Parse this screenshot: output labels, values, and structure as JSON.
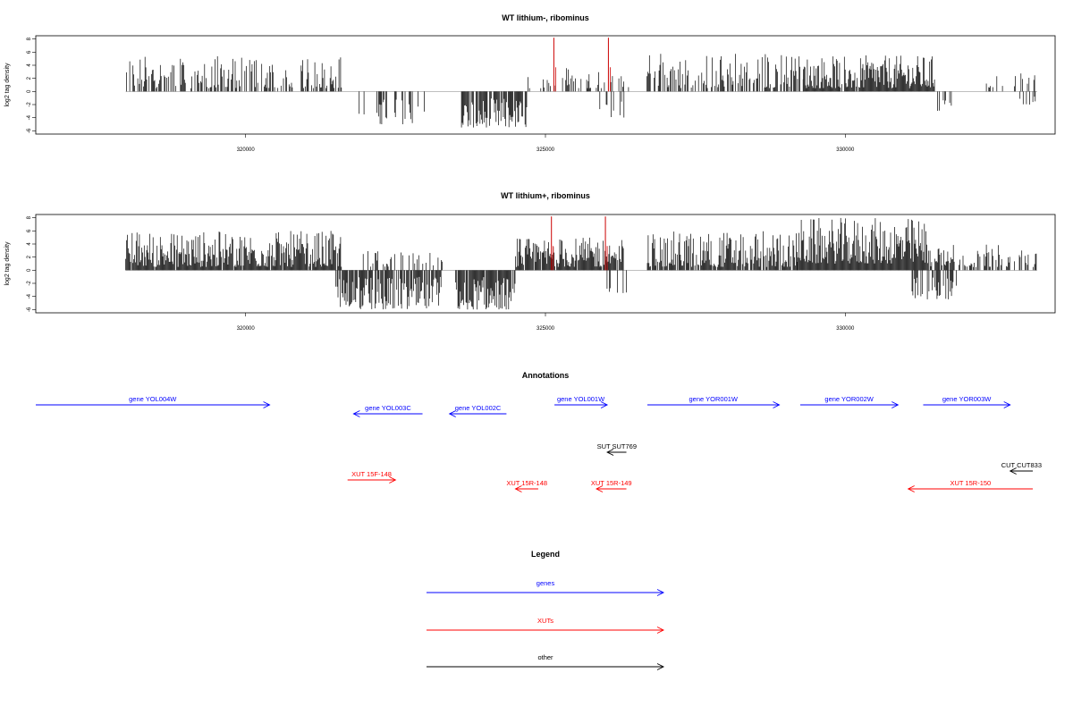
{
  "chart_data": [
    {
      "type": "bar",
      "title": "WT lithium-, ribominus",
      "ylabel": "log2 tag density",
      "xlim": [
        316500,
        333500
      ],
      "ylim": [
        -6.5,
        8.5
      ],
      "x_ticks": [
        320000,
        325000,
        330000
      ],
      "y_ticks": [
        8,
        6,
        4,
        2,
        0,
        -2,
        -4,
        -6
      ],
      "highlight_x": [
        325140,
        326050
      ],
      "highlight_values": [
        8.2,
        8.2
      ],
      "highlight_color": "#cc0000",
      "segments": [
        {
          "start": 318000,
          "end": 321600,
          "density": 0.55,
          "min": 0.5,
          "max": 5.5,
          "direction": "up"
        },
        {
          "start": 321800,
          "end": 323000,
          "density": 0.3,
          "min": -5.0,
          "max": -1.0,
          "direction": "down"
        },
        {
          "start": 323600,
          "end": 324700,
          "density": 0.85,
          "min": -5.5,
          "max": -1.0,
          "direction": "down"
        },
        {
          "start": 324600,
          "end": 326400,
          "density": 0.25,
          "min": 0.5,
          "max": 4.0,
          "direction": "up"
        },
        {
          "start": 325800,
          "end": 326400,
          "density": 0.15,
          "min": -4.0,
          "max": -1.0,
          "direction": "down"
        },
        {
          "start": 326600,
          "end": 329300,
          "density": 0.55,
          "min": 0.5,
          "max": 6.0,
          "direction": "up"
        },
        {
          "start": 329300,
          "end": 331500,
          "density": 0.95,
          "min": 0.5,
          "max": 5.5,
          "direction": "up"
        },
        {
          "start": 331500,
          "end": 331800,
          "density": 0.2,
          "min": -3.0,
          "max": -1.0,
          "direction": "down"
        },
        {
          "start": 332300,
          "end": 333200,
          "density": 0.15,
          "min": 0.5,
          "max": 3.0,
          "direction": "up"
        },
        {
          "start": 332900,
          "end": 333200,
          "density": 0.2,
          "min": -2.0,
          "max": -0.5,
          "direction": "down"
        }
      ]
    },
    {
      "type": "bar",
      "title": "WT lithium+, ribominus",
      "ylabel": "log2 tag density",
      "xlim": [
        316500,
        333500
      ],
      "ylim": [
        -6.5,
        8.5
      ],
      "x_ticks": [
        320000,
        325000,
        330000
      ],
      "y_ticks": [
        8,
        6,
        4,
        2,
        0,
        -2,
        -4,
        -6
      ],
      "highlight_x": [
        325100,
        326000
      ],
      "highlight_values": [
        8.2,
        8.2
      ],
      "highlight_color": "#cc0000",
      "segments": [
        {
          "start": 318000,
          "end": 321600,
          "density": 0.95,
          "min": 0.5,
          "max": 6.0,
          "direction": "up"
        },
        {
          "start": 321500,
          "end": 323300,
          "density": 0.8,
          "min": -6.0,
          "max": -1.0,
          "direction": "down"
        },
        {
          "start": 321800,
          "end": 323300,
          "density": 0.3,
          "min": 0.5,
          "max": 3.0,
          "direction": "up"
        },
        {
          "start": 323500,
          "end": 324500,
          "density": 0.95,
          "min": -6.0,
          "max": -1.0,
          "direction": "down"
        },
        {
          "start": 324500,
          "end": 326300,
          "density": 0.95,
          "min": 0.5,
          "max": 5.0,
          "direction": "up"
        },
        {
          "start": 326000,
          "end": 326400,
          "density": 0.25,
          "min": -3.5,
          "max": -1.0,
          "direction": "down"
        },
        {
          "start": 326700,
          "end": 329200,
          "density": 0.85,
          "min": 0.5,
          "max": 6.0,
          "direction": "up"
        },
        {
          "start": 329200,
          "end": 331400,
          "density": 1.0,
          "min": 1.0,
          "max": 8.0,
          "direction": "up"
        },
        {
          "start": 331100,
          "end": 331900,
          "density": 0.4,
          "min": -4.5,
          "max": -1.0,
          "direction": "down"
        },
        {
          "start": 331400,
          "end": 333200,
          "density": 0.55,
          "min": 0.5,
          "max": 4.0,
          "direction": "up"
        }
      ]
    }
  ],
  "annotations": {
    "title": "Annotations",
    "features": [
      {
        "label": "gene YOL004W",
        "start": 316500,
        "end": 320400,
        "strand": "+",
        "kind": "gene",
        "row": 1
      },
      {
        "label": "gene YOL003C",
        "start": 321800,
        "end": 322950,
        "strand": "-",
        "kind": "gene",
        "row": 2
      },
      {
        "label": "gene YOL002C",
        "start": 323400,
        "end": 324350,
        "strand": "-",
        "kind": "gene",
        "row": 2
      },
      {
        "label": "gene YOL001W",
        "start": 325150,
        "end": 326030,
        "strand": "+",
        "kind": "gene",
        "row": 1
      },
      {
        "label": "gene YOR001W",
        "start": 326700,
        "end": 328900,
        "strand": "+",
        "kind": "gene",
        "row": 1
      },
      {
        "label": "gene YOR002W",
        "start": 329250,
        "end": 330880,
        "strand": "+",
        "kind": "gene",
        "row": 1
      },
      {
        "label": "gene YOR003W",
        "start": 331300,
        "end": 332750,
        "strand": "+",
        "kind": "gene",
        "row": 1
      },
      {
        "label": "SUT SUT769",
        "start": 326030,
        "end": 326350,
        "strand": "-",
        "kind": "other",
        "row": 3
      },
      {
        "label": "CUT CUT833",
        "start": 332750,
        "end": 333250,
        "strand": "-",
        "kind": "other",
        "row": 4
      },
      {
        "label": "XUT 15F-148",
        "start": 321700,
        "end": 322500,
        "strand": "+",
        "kind": "xut",
        "row": 5
      },
      {
        "label": "XUT 15R-148",
        "start": 324500,
        "end": 324880,
        "strand": "-",
        "kind": "xut",
        "row": 6
      },
      {
        "label": "XUT 15R-149",
        "start": 325850,
        "end": 326350,
        "strand": "-",
        "kind": "xut",
        "row": 6
      },
      {
        "label": "XUT 15R-150",
        "start": 331050,
        "end": 333250,
        "strand": "-",
        "kind": "xut",
        "row": 6
      }
    ]
  },
  "legend": {
    "title": "Legend",
    "items": [
      {
        "label": "genes",
        "color": "#0000ff"
      },
      {
        "label": "XUTs",
        "color": "#ff0000"
      },
      {
        "label": "other",
        "color": "#000000"
      }
    ]
  },
  "colors": {
    "gene": "#0000ff",
    "xut": "#ff0000",
    "other": "#000000"
  }
}
